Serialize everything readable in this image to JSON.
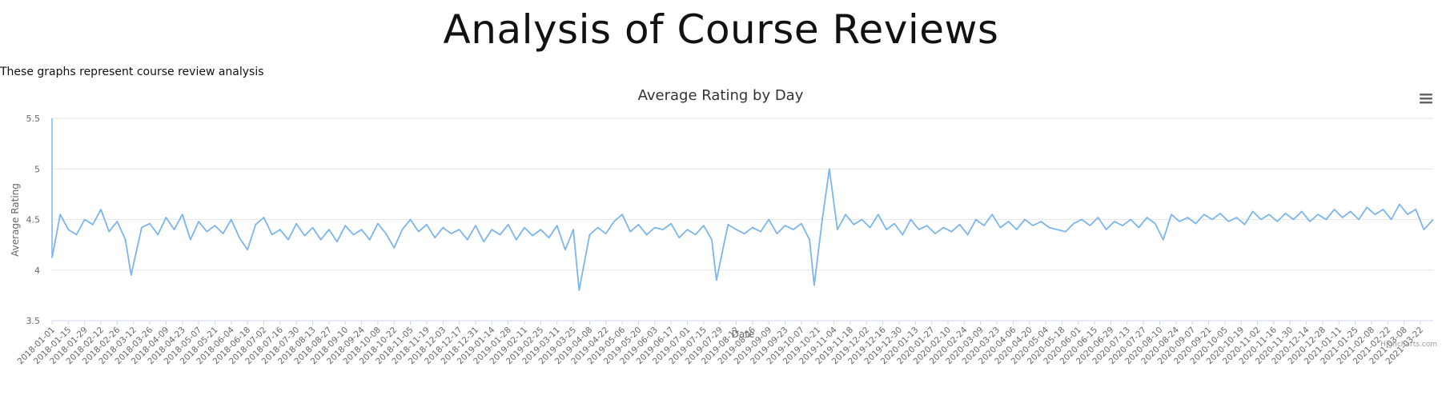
{
  "page": {
    "title": "Analysis of Course Reviews",
    "description": "These graphs represent course review analysis"
  },
  "chart_data": {
    "type": "line",
    "title": "Average Rating by Day",
    "xlabel": "Date",
    "ylabel": "Average Rating",
    "ylim": [
      3.5,
      5.5
    ],
    "y_ticks": [
      "3.5",
      "4",
      "4.5",
      "5",
      "5.5"
    ],
    "x_range": [
      "2018-01-01",
      "2021-04-02"
    ],
    "x_tick_labels": [
      "2018-01-01",
      "2018-01-15",
      "2018-01-29",
      "2018-02-12",
      "2018-02-26",
      "2018-03-12",
      "2018-03-26",
      "2018-04-09",
      "2018-04-23",
      "2018-05-07",
      "2018-05-21",
      "2018-06-04",
      "2018-06-18",
      "2018-07-02",
      "2018-07-16",
      "2018-07-30",
      "2018-08-13",
      "2018-08-27",
      "2018-09-10",
      "2018-09-24",
      "2018-10-08",
      "2018-10-22",
      "2018-11-05",
      "2018-11-19",
      "2018-12-03",
      "2018-12-17",
      "2018-12-31",
      "2019-01-14",
      "2019-01-28",
      "2019-02-11",
      "2019-02-25",
      "2019-03-11",
      "2019-03-25",
      "2019-04-08",
      "2019-04-22",
      "2019-05-06",
      "2019-05-20",
      "2019-06-03",
      "2019-06-17",
      "2019-07-01",
      "2019-07-15",
      "2019-07-29",
      "2019-08-12",
      "2019-08-26",
      "2019-09-09",
      "2019-09-23",
      "2019-10-07",
      "2019-10-21",
      "2019-11-04",
      "2019-11-18",
      "2019-12-02",
      "2019-12-16",
      "2019-12-30",
      "2020-01-13",
      "2020-01-27",
      "2020-02-10",
      "2020-02-24",
      "2020-03-09",
      "2020-03-23",
      "2020-04-06",
      "2020-04-20",
      "2020-05-04",
      "2020-05-18",
      "2020-06-01",
      "2020-06-15",
      "2020-06-29",
      "2020-07-13",
      "2020-07-27",
      "2020-08-10",
      "2020-08-24",
      "2020-09-07",
      "2020-09-21",
      "2020-10-05",
      "2020-10-19",
      "2020-11-02",
      "2020-11-16",
      "2020-11-30",
      "2020-12-14",
      "2020-12-28",
      "2021-01-11",
      "2021-01-25",
      "2021-02-08",
      "2021-02-22",
      "2021-03-08",
      "2021-03-22"
    ],
    "grid": true,
    "legend": "none",
    "series_color": "#7cb5ec",
    "series": [
      {
        "points": [
          [
            "2018-01-01",
            4.12
          ],
          [
            "2018-01-08",
            4.55
          ],
          [
            "2018-01-15",
            4.4
          ],
          [
            "2018-01-22",
            4.35
          ],
          [
            "2018-01-29",
            4.5
          ],
          [
            "2018-02-05",
            4.45
          ],
          [
            "2018-02-12",
            4.6
          ],
          [
            "2018-02-19",
            4.38
          ],
          [
            "2018-02-26",
            4.48
          ],
          [
            "2018-03-05",
            4.3
          ],
          [
            "2018-03-10",
            3.95
          ],
          [
            "2018-03-19",
            4.42
          ],
          [
            "2018-03-26",
            4.46
          ],
          [
            "2018-04-02",
            4.35
          ],
          [
            "2018-04-09",
            4.52
          ],
          [
            "2018-04-16",
            4.4
          ],
          [
            "2018-04-23",
            4.55
          ],
          [
            "2018-04-30",
            4.3
          ],
          [
            "2018-05-07",
            4.48
          ],
          [
            "2018-05-14",
            4.38
          ],
          [
            "2018-05-21",
            4.44
          ],
          [
            "2018-05-28",
            4.36
          ],
          [
            "2018-06-04",
            4.5
          ],
          [
            "2018-06-11",
            4.32
          ],
          [
            "2018-06-18",
            4.2
          ],
          [
            "2018-06-25",
            4.45
          ],
          [
            "2018-07-02",
            4.52
          ],
          [
            "2018-07-09",
            4.35
          ],
          [
            "2018-07-16",
            4.4
          ],
          [
            "2018-07-23",
            4.3
          ],
          [
            "2018-07-30",
            4.46
          ],
          [
            "2018-08-06",
            4.34
          ],
          [
            "2018-08-13",
            4.42
          ],
          [
            "2018-08-20",
            4.3
          ],
          [
            "2018-08-27",
            4.4
          ],
          [
            "2018-09-03",
            4.28
          ],
          [
            "2018-09-10",
            4.44
          ],
          [
            "2018-09-17",
            4.35
          ],
          [
            "2018-09-24",
            4.4
          ],
          [
            "2018-10-01",
            4.3
          ],
          [
            "2018-10-08",
            4.46
          ],
          [
            "2018-10-15",
            4.36
          ],
          [
            "2018-10-22",
            4.22
          ],
          [
            "2018-10-29",
            4.4
          ],
          [
            "2018-11-05",
            4.5
          ],
          [
            "2018-11-12",
            4.38
          ],
          [
            "2018-11-19",
            4.45
          ],
          [
            "2018-11-26",
            4.32
          ],
          [
            "2018-12-03",
            4.42
          ],
          [
            "2018-12-10",
            4.36
          ],
          [
            "2018-12-17",
            4.4
          ],
          [
            "2018-12-24",
            4.3
          ],
          [
            "2018-12-31",
            4.44
          ],
          [
            "2019-01-07",
            4.28
          ],
          [
            "2019-01-14",
            4.4
          ],
          [
            "2019-01-21",
            4.35
          ],
          [
            "2019-01-28",
            4.45
          ],
          [
            "2019-02-04",
            4.3
          ],
          [
            "2019-02-11",
            4.42
          ],
          [
            "2019-02-18",
            4.34
          ],
          [
            "2019-02-25",
            4.4
          ],
          [
            "2019-03-04",
            4.32
          ],
          [
            "2019-03-11",
            4.44
          ],
          [
            "2019-03-18",
            4.2
          ],
          [
            "2019-03-25",
            4.4
          ],
          [
            "2019-03-30",
            3.8
          ],
          [
            "2019-04-08",
            4.35
          ],
          [
            "2019-04-15",
            4.42
          ],
          [
            "2019-04-22",
            4.36
          ],
          [
            "2019-04-29",
            4.48
          ],
          [
            "2019-05-06",
            4.55
          ],
          [
            "2019-05-13",
            4.38
          ],
          [
            "2019-05-20",
            4.45
          ],
          [
            "2019-05-27",
            4.35
          ],
          [
            "2019-06-03",
            4.42
          ],
          [
            "2019-06-10",
            4.4
          ],
          [
            "2019-06-17",
            4.46
          ],
          [
            "2019-06-24",
            4.32
          ],
          [
            "2019-07-01",
            4.4
          ],
          [
            "2019-07-08",
            4.35
          ],
          [
            "2019-07-15",
            4.44
          ],
          [
            "2019-07-22",
            4.3
          ],
          [
            "2019-07-26",
            3.9
          ],
          [
            "2019-08-05",
            4.45
          ],
          [
            "2019-08-12",
            4.4
          ],
          [
            "2019-08-19",
            4.36
          ],
          [
            "2019-08-26",
            4.42
          ],
          [
            "2019-09-02",
            4.38
          ],
          [
            "2019-09-09",
            4.5
          ],
          [
            "2019-09-16",
            4.36
          ],
          [
            "2019-09-23",
            4.44
          ],
          [
            "2019-09-30",
            4.4
          ],
          [
            "2019-10-07",
            4.46
          ],
          [
            "2019-10-14",
            4.3
          ],
          [
            "2019-10-18",
            3.85
          ],
          [
            "2019-10-25",
            4.5
          ],
          [
            "2019-10-31",
            5.0
          ],
          [
            "2019-11-07",
            4.4
          ],
          [
            "2019-11-14",
            4.55
          ],
          [
            "2019-11-21",
            4.45
          ],
          [
            "2019-11-28",
            4.5
          ],
          [
            "2019-12-05",
            4.42
          ],
          [
            "2019-12-12",
            4.55
          ],
          [
            "2019-12-19",
            4.4
          ],
          [
            "2019-12-26",
            4.46
          ],
          [
            "2020-01-02",
            4.35
          ],
          [
            "2020-01-09",
            4.5
          ],
          [
            "2020-01-16",
            4.4
          ],
          [
            "2020-01-23",
            4.44
          ],
          [
            "2020-01-30",
            4.36
          ],
          [
            "2020-02-06",
            4.42
          ],
          [
            "2020-02-13",
            4.38
          ],
          [
            "2020-02-20",
            4.45
          ],
          [
            "2020-02-27",
            4.35
          ],
          [
            "2020-03-05",
            4.5
          ],
          [
            "2020-03-12",
            4.44
          ],
          [
            "2020-03-19",
            4.55
          ],
          [
            "2020-03-26",
            4.42
          ],
          [
            "2020-04-02",
            4.48
          ],
          [
            "2020-04-09",
            4.4
          ],
          [
            "2020-04-16",
            4.5
          ],
          [
            "2020-04-23",
            4.44
          ],
          [
            "2020-04-30",
            4.48
          ],
          [
            "2020-05-07",
            4.42
          ],
          [
            "2020-05-14",
            4.4
          ],
          [
            "2020-05-21",
            4.38
          ],
          [
            "2020-05-28",
            4.46
          ],
          [
            "2020-06-04",
            4.5
          ],
          [
            "2020-06-11",
            4.44
          ],
          [
            "2020-06-18",
            4.52
          ],
          [
            "2020-06-25",
            4.4
          ],
          [
            "2020-07-02",
            4.48
          ],
          [
            "2020-07-09",
            4.44
          ],
          [
            "2020-07-16",
            4.5
          ],
          [
            "2020-07-23",
            4.42
          ],
          [
            "2020-07-30",
            4.52
          ],
          [
            "2020-08-06",
            4.46
          ],
          [
            "2020-08-13",
            4.3
          ],
          [
            "2020-08-20",
            4.55
          ],
          [
            "2020-08-27",
            4.48
          ],
          [
            "2020-09-03",
            4.52
          ],
          [
            "2020-09-10",
            4.46
          ],
          [
            "2020-09-17",
            4.55
          ],
          [
            "2020-09-24",
            4.5
          ],
          [
            "2020-10-01",
            4.56
          ],
          [
            "2020-10-08",
            4.48
          ],
          [
            "2020-10-15",
            4.52
          ],
          [
            "2020-10-22",
            4.45
          ],
          [
            "2020-10-29",
            4.58
          ],
          [
            "2020-11-05",
            4.5
          ],
          [
            "2020-11-12",
            4.55
          ],
          [
            "2020-11-19",
            4.48
          ],
          [
            "2020-11-26",
            4.56
          ],
          [
            "2020-12-03",
            4.5
          ],
          [
            "2020-12-10",
            4.58
          ],
          [
            "2020-12-17",
            4.48
          ],
          [
            "2020-12-24",
            4.55
          ],
          [
            "2020-12-31",
            4.5
          ],
          [
            "2021-01-07",
            4.6
          ],
          [
            "2021-01-14",
            4.52
          ],
          [
            "2021-01-21",
            4.58
          ],
          [
            "2021-01-28",
            4.5
          ],
          [
            "2021-02-04",
            4.62
          ],
          [
            "2021-02-11",
            4.55
          ],
          [
            "2021-02-18",
            4.6
          ],
          [
            "2021-02-25",
            4.5
          ],
          [
            "2021-03-04",
            4.65
          ],
          [
            "2021-03-11",
            4.55
          ],
          [
            "2021-03-18",
            4.6
          ],
          [
            "2021-03-25",
            4.4
          ],
          [
            "2021-04-02",
            4.5
          ]
        ]
      }
    ],
    "credits": "Highcharts.com"
  }
}
